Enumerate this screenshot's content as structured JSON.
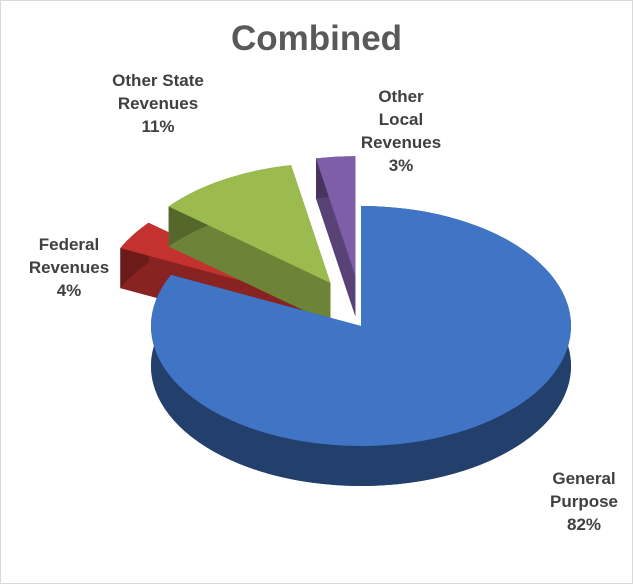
{
  "chart_data": {
    "type": "pie3d",
    "title": "Combined",
    "categories": [
      "General Purpose",
      "Federal Revenues",
      "Other State Revenues",
      "Other Local Revenues"
    ],
    "values": [
      82,
      4,
      11,
      3
    ],
    "value_labels": [
      "82%",
      "4%",
      "11%",
      "3%"
    ],
    "colors": [
      "#4074c4",
      "#c3322f",
      "#9bbb4f",
      "#7e5ea8"
    ],
    "exploded": [
      false,
      true,
      true,
      true
    ]
  }
}
